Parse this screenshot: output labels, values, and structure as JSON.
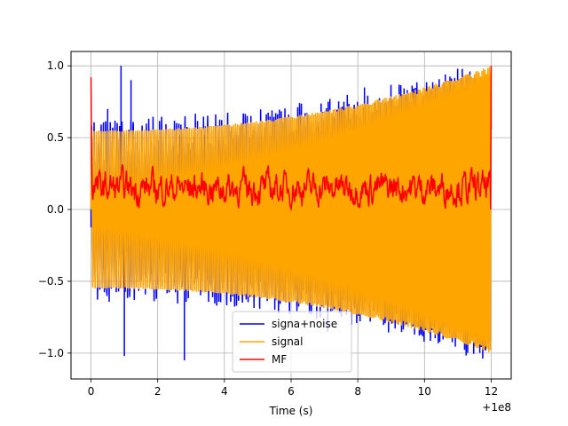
{
  "chart_data": {
    "type": "line",
    "title": "",
    "xlabel": "Time (s)",
    "ylabel": "",
    "x_offset_label": "+1e8",
    "xlim": [
      -0.6,
      12.6
    ],
    "ylim": [
      -1.18,
      1.1
    ],
    "x_ticks": [
      0,
      2,
      4,
      6,
      8,
      10,
      12
    ],
    "x_tick_labels": [
      "0",
      "2",
      "4",
      "6",
      "8",
      "10",
      "12"
    ],
    "y_ticks": [
      -1.0,
      -0.5,
      0.0,
      0.5,
      1.0
    ],
    "y_tick_labels": [
      "−1.0",
      "−0.5",
      "0.0",
      "0.5",
      "1.0"
    ],
    "grid": true,
    "legend_position": "bottom-center",
    "series": [
      {
        "name": "signa+noise",
        "color": "#0000ff",
        "description": "noisy chirp with envelope ~0.55 rising to ~1.0; spikes up to ~1.0 and down to ~-1.05",
        "x_start": 0,
        "x_end": 12,
        "envelope_start": 0.55,
        "envelope_end": 1.0,
        "peaks": [
          [
            0.9,
            1.0
          ],
          [
            1.2,
            0.9
          ],
          [
            2.8,
            -1.05
          ],
          [
            3.5,
            0.62
          ],
          [
            7.1,
            -0.85
          ],
          [
            8.2,
            0.85
          ],
          [
            10.3,
            -0.82
          ],
          [
            1.0,
            -1.02
          ],
          [
            0.5,
            0.7
          ],
          [
            10.3,
            0.85
          ]
        ]
      },
      {
        "name": "signal",
        "color": "#ffa500",
        "description": "chirp oscillation with envelope rising from 0.55 to 1.0",
        "x_start": 0,
        "x_end": 12,
        "envelope_start": 0.55,
        "envelope_end": 1.0
      },
      {
        "name": "MF",
        "color": "#ff0000",
        "description": "matched filter output ~0.1-0.3 noise, 0.92 at start, 1.0 at end",
        "x_start": 0,
        "x_end": 12,
        "start_value": 0.92,
        "end_value": 1.0,
        "mean_level": 0.15,
        "noise_range": [
          -0.05,
          0.35
        ]
      }
    ]
  }
}
